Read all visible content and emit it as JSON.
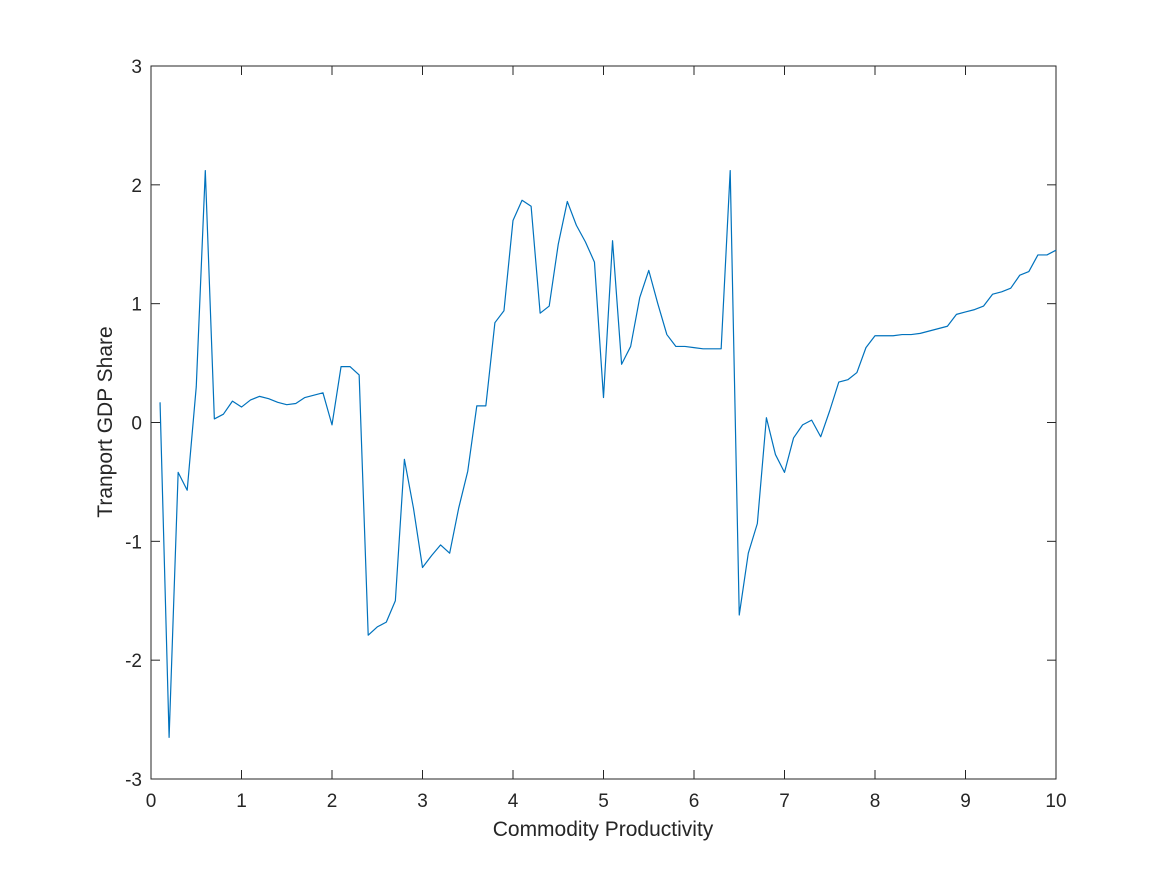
{
  "chart_data": {
    "type": "line",
    "title": "",
    "xlabel": "Commodity Productivity",
    "ylabel": "Tranport GDP Share",
    "xlim": [
      0,
      10
    ],
    "ylim": [
      -3,
      3
    ],
    "xticks": [
      0,
      1,
      2,
      3,
      4,
      5,
      6,
      7,
      8,
      9,
      10
    ],
    "xtick_labels": [
      "0",
      "1",
      "2",
      "3",
      "4",
      "5",
      "6",
      "7",
      "8",
      "9",
      "10"
    ],
    "yticks": [
      3,
      2,
      1,
      0,
      -1,
      -2,
      -3
    ],
    "ytick_labels": [
      "3",
      "2",
      "1",
      "0",
      "-1",
      "-2",
      "-3"
    ],
    "grid": false,
    "series": [
      {
        "color": "#0072BD",
        "x": [
          0.1,
          0.2,
          0.3,
          0.4,
          0.5,
          0.6,
          0.7,
          0.8,
          0.9,
          1.0,
          1.1,
          1.2,
          1.3,
          1.4,
          1.5,
          1.6,
          1.7,
          1.8,
          1.9,
          2.0,
          2.1,
          2.2,
          2.3,
          2.4,
          2.5,
          2.6,
          2.7,
          2.8,
          2.9,
          3.0,
          3.1,
          3.2,
          3.3,
          3.4,
          3.5,
          3.6,
          3.7,
          3.8,
          3.9,
          4.0,
          4.1,
          4.2,
          4.3,
          4.4,
          4.5,
          4.6,
          4.7,
          4.8,
          4.9,
          5.0,
          5.1,
          5.2,
          5.3,
          5.4,
          5.5,
          5.6,
          5.7,
          5.8,
          5.9,
          6.0,
          6.1,
          6.2,
          6.3,
          6.4,
          6.5,
          6.6,
          6.7,
          6.8,
          6.9,
          7.0,
          7.1,
          7.2,
          7.3,
          7.4,
          7.5,
          7.6,
          7.7,
          7.8,
          7.9,
          8.0,
          8.1,
          8.2,
          8.3,
          8.4,
          8.5,
          8.6,
          8.7,
          8.8,
          8.9,
          9.0,
          9.1,
          9.2,
          9.3,
          9.4,
          9.5,
          9.6,
          9.7,
          9.8,
          9.9,
          10.0
        ],
        "y": [
          0.17,
          -2.65,
          -0.42,
          -0.57,
          0.3,
          2.12,
          0.03,
          0.07,
          0.18,
          0.13,
          0.19,
          0.22,
          0.2,
          0.17,
          0.15,
          0.16,
          0.21,
          0.23,
          0.25,
          -0.02,
          0.47,
          0.47,
          0.4,
          -1.79,
          -1.72,
          -1.68,
          -1.5,
          -0.31,
          -0.72,
          -1.22,
          -1.12,
          -1.03,
          -1.1,
          -0.72,
          -0.41,
          0.14,
          0.14,
          0.84,
          0.94,
          1.7,
          1.87,
          1.82,
          0.92,
          0.98,
          1.5,
          1.86,
          1.66,
          1.52,
          1.35,
          0.21,
          1.53,
          0.49,
          0.64,
          1.05,
          1.28,
          1.0,
          0.74,
          0.64,
          0.64,
          0.63,
          0.62,
          0.62,
          0.62,
          2.12,
          -1.62,
          -1.1,
          -0.85,
          0.04,
          -0.27,
          -0.42,
          -0.13,
          -0.02,
          0.02,
          -0.12,
          0.1,
          0.34,
          0.36,
          0.42,
          0.63,
          0.73,
          0.73,
          0.73,
          0.74,
          0.74,
          0.75,
          0.77,
          0.79,
          0.81,
          0.91,
          0.93,
          0.95,
          0.98,
          1.08,
          1.1,
          1.13,
          1.24,
          1.27,
          1.41,
          1.41,
          1.45
        ]
      }
    ]
  }
}
